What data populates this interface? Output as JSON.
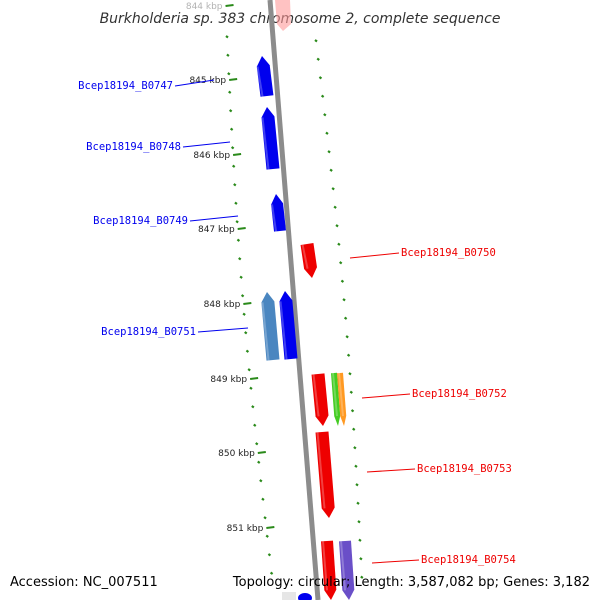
{
  "title": "Burkholderia sp. 383 chromosome 2, complete sequence",
  "footer": {
    "accession": "Accession: NC_007511",
    "summary": "Topology: circular; Length: 3,587,082 bp; Genes: 3,182"
  },
  "scale": {
    "ticks": [
      {
        "label": "844 kbp",
        "pos": 844
      },
      {
        "label": "845 kbp",
        "pos": 845
      },
      {
        "label": "846 kbp",
        "pos": 846
      },
      {
        "label": "847 kbp",
        "pos": 847
      },
      {
        "label": "848 kbp",
        "pos": 848
      },
      {
        "label": "849 kbp",
        "pos": 849
      },
      {
        "label": "850 kbp",
        "pos": 850
      },
      {
        "label": "851 kbp",
        "pos": 851
      }
    ]
  },
  "colors": {
    "forward": "#0000ee",
    "reverse": "#ee0000",
    "forward_alt": "#4a86c0",
    "feature_green": "#44cc22",
    "feature_orange": "#ff9922",
    "feature_purple": "#6a4fc8",
    "backbone": "#8c8c8c",
    "dots": "#2a8a1a"
  },
  "genes": [
    {
      "label": "Bcep18194_B0747",
      "strand": "forward",
      "color_key": "forward"
    },
    {
      "label": "Bcep18194_B0748",
      "strand": "forward",
      "color_key": "forward"
    },
    {
      "label": "Bcep18194_B0749",
      "strand": "forward",
      "color_key": "forward"
    },
    {
      "label": "Bcep18194_B0750",
      "strand": "reverse",
      "color_key": "reverse"
    },
    {
      "label": "Bcep18194_B0751",
      "strand": "forward",
      "color_key": "forward"
    },
    {
      "label": "Bcep18194_B0752",
      "strand": "reverse",
      "color_key": "reverse"
    },
    {
      "label": "Bcep18194_B0753",
      "strand": "reverse",
      "color_key": "reverse"
    },
    {
      "label": "Bcep18194_B0754",
      "strand": "reverse",
      "color_key": "reverse"
    }
  ]
}
